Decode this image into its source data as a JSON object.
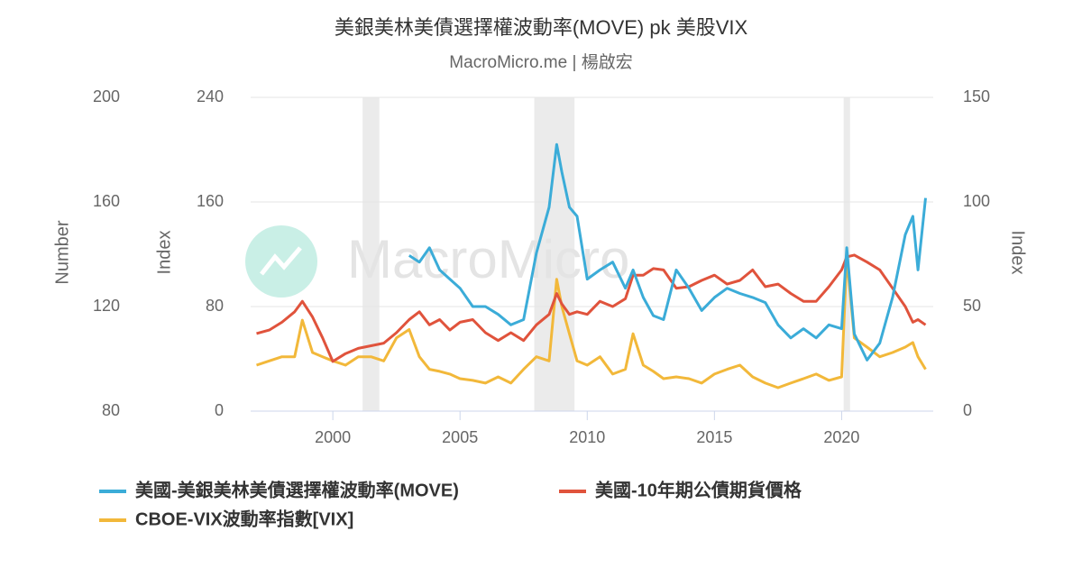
{
  "chart_data": {
    "type": "line",
    "title": "美銀美林美債選擇權波動率(MOVE) pk 美股VIX",
    "subtitle": "MacroMicro.me | 楊啟宏",
    "watermark": "MacroMicro",
    "x": [
      1997.0,
      1997.5,
      1998.0,
      1998.5,
      1998.8,
      1999.2,
      1999.6,
      2000.0,
      2000.5,
      2001.0,
      2001.5,
      2002.0,
      2002.5,
      2003.0,
      2003.4,
      2003.8,
      2004.2,
      2004.6,
      2005.0,
      2005.5,
      2006.0,
      2006.5,
      2007.0,
      2007.5,
      2008.0,
      2008.5,
      2008.8,
      2009.0,
      2009.3,
      2009.6,
      2010.0,
      2010.5,
      2011.0,
      2011.5,
      2011.8,
      2012.2,
      2012.6,
      2013.0,
      2013.5,
      2014.0,
      2014.5,
      2015.0,
      2015.5,
      2016.0,
      2016.5,
      2017.0,
      2017.5,
      2018.0,
      2018.5,
      2019.0,
      2019.5,
      2020.0,
      2020.2,
      2020.5,
      2021.0,
      2021.5,
      2022.0,
      2022.5,
      2022.8,
      2023.0,
      2023.3
    ],
    "xlim": [
      1996.77,
      2023.6
    ],
    "xticks": [
      2000,
      2005,
      2010,
      2015,
      2020
    ],
    "recessions": [
      [
        2001.17,
        2001.83
      ],
      [
        2007.92,
        2009.5
      ],
      [
        2020.08,
        2020.33
      ]
    ],
    "ylabel": "Number",
    "ylim": [
      80,
      200
    ],
    "yticks": [
      80,
      120,
      160,
      200
    ],
    "y2label": "Index",
    "y2lim": [
      0,
      240
    ],
    "y2ticks": [
      0,
      80,
      160,
      240
    ],
    "y3label": "Index",
    "y3lim": [
      0,
      150
    ],
    "y3ticks": [
      0,
      50,
      100,
      150
    ],
    "grid": true,
    "series": [
      {
        "name": "美國-美銀美林美債選擇權波動率(MOVE)",
        "color": "#3bacd8",
        "axis": "y2",
        "values": [
          null,
          null,
          null,
          null,
          null,
          null,
          null,
          null,
          null,
          null,
          null,
          null,
          null,
          119,
          114,
          125,
          108,
          101,
          94,
          80,
          80,
          74,
          66,
          70,
          121,
          156,
          204,
          183,
          156,
          149,
          101,
          108,
          114,
          94,
          108,
          87,
          73,
          70,
          108,
          94,
          77,
          87,
          94,
          90,
          87,
          83,
          66,
          56,
          63,
          56,
          66,
          63,
          125,
          59,
          39,
          52,
          87,
          135,
          149,
          108,
          163
        ]
      },
      {
        "name": "美國-10年期公債期貨價格",
        "color": "#e0533c",
        "axis": "y",
        "values": [
          109.7,
          111,
          114,
          118,
          122,
          116,
          108,
          99,
          102,
          104,
          105,
          106,
          110,
          115,
          118,
          113,
          115,
          111,
          114,
          115,
          110,
          107,
          110,
          107,
          113,
          117,
          125,
          121,
          117,
          118,
          117,
          122,
          120,
          123,
          132,
          132,
          134.5,
          134,
          127,
          127.6,
          130,
          132,
          128.6,
          130,
          134,
          127.6,
          128.6,
          125,
          122,
          122,
          127.6,
          134,
          139,
          139.7,
          137,
          134,
          127,
          120,
          114,
          115,
          113
        ]
      },
      {
        "name": "CBOE-VIX波動率指數[VIX]",
        "color": "#f2b83a",
        "axis": "y3",
        "values": [
          22,
          24,
          26,
          26,
          43.5,
          28,
          26,
          24,
          22,
          26,
          26,
          24,
          35,
          39,
          26,
          20,
          19,
          17.7,
          15.5,
          14.7,
          13.4,
          16.4,
          13.4,
          20,
          26,
          24,
          63,
          50,
          37,
          24,
          22,
          26,
          17.7,
          20,
          37,
          22,
          19,
          15.5,
          16.4,
          15.5,
          13.4,
          17.7,
          20,
          22,
          16.4,
          13.4,
          11.2,
          13.4,
          15.5,
          17.7,
          14.7,
          16.4,
          73.7,
          35,
          30.6,
          26,
          28,
          30.6,
          32.8,
          26,
          20
        ]
      }
    ]
  }
}
